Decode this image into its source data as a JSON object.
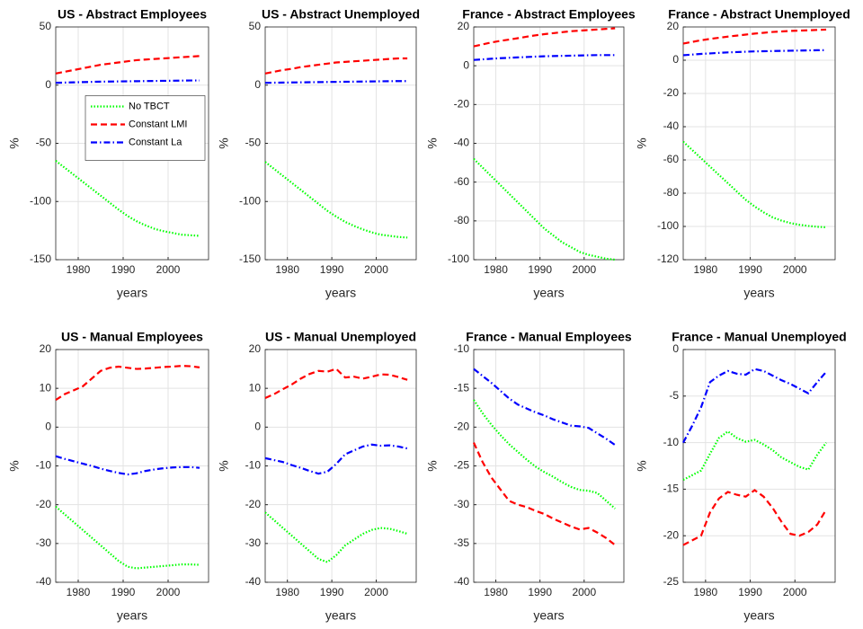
{
  "chart_data": [
    {
      "type": "line",
      "title": "US - Abstract Employees",
      "xlabel": "years",
      "ylabel": "%",
      "x": [
        1975,
        1977,
        1979,
        1981,
        1983,
        1985,
        1987,
        1989,
        1991,
        1993,
        1995,
        1997,
        1999,
        2001,
        2003,
        2005,
        2007
      ],
      "xlim": [
        1975,
        2009
      ],
      "xticks": [
        1980,
        1990,
        2000
      ],
      "ylim": [
        -150,
        50
      ],
      "yticks": [
        -150,
        -100,
        -50,
        0,
        50
      ],
      "grid": true,
      "legend": "east",
      "series": [
        {
          "name": "No TBCT",
          "color": "#00ff00",
          "linestyle": "dotted",
          "values": [
            -65,
            -71,
            -77,
            -83,
            -89,
            -95,
            -101,
            -107,
            -112.5,
            -117,
            -120.5,
            -123.5,
            -125.5,
            -127,
            -128.5,
            -129,
            -129.5
          ]
        },
        {
          "name": "Constant LMI",
          "color": "#ff0000",
          "linestyle": "dashed",
          "values": [
            10,
            11.5,
            13,
            14.5,
            16,
            17.5,
            18.5,
            19.5,
            20.5,
            21.5,
            22,
            22.5,
            23,
            23.5,
            24,
            24.5,
            25
          ]
        },
        {
          "name": "Constant La",
          "color": "#0000ff",
          "linestyle": "dashdot",
          "values": [
            2,
            2.2,
            2.4,
            2.6,
            2.8,
            3,
            3.1,
            3.2,
            3.3,
            3.4,
            3.5,
            3.6,
            3.7,
            3.8,
            3.9,
            4,
            4
          ]
        }
      ]
    },
    {
      "type": "line",
      "title": "US - Abstract Unemployed",
      "xlabel": "years",
      "ylabel": "%",
      "x": [
        1975,
        1977,
        1979,
        1981,
        1983,
        1985,
        1987,
        1989,
        1991,
        1993,
        1995,
        1997,
        1999,
        2001,
        2003,
        2005,
        2007
      ],
      "xlim": [
        1975,
        2009
      ],
      "xticks": [
        1980,
        1990,
        2000
      ],
      "ylim": [
        -150,
        50
      ],
      "yticks": [
        -150,
        -100,
        -50,
        0,
        50
      ],
      "grid": true,
      "series": [
        {
          "color": "#00ff00",
          "linestyle": "dotted",
          "values": [
            -66,
            -72,
            -78,
            -84,
            -90,
            -96,
            -102,
            -108,
            -113,
            -117.5,
            -121,
            -124,
            -126.5,
            -128.5,
            -129.5,
            -130.5,
            -131
          ]
        },
        {
          "color": "#ff0000",
          "linestyle": "dashed",
          "values": [
            10,
            11.5,
            13,
            14,
            15.5,
            16.5,
            17.5,
            18.5,
            19.5,
            20,
            20.5,
            21,
            21.5,
            22,
            22.5,
            23,
            23
          ]
        },
        {
          "color": "#0000ff",
          "linestyle": "dashdot",
          "values": [
            2,
            2.1,
            2.2,
            2.3,
            2.4,
            2.5,
            2.6,
            2.7,
            2.8,
            2.9,
            3,
            3.1,
            3.2,
            3.3,
            3.4,
            3.5,
            3.5
          ]
        }
      ]
    },
    {
      "type": "line",
      "title": "France - Abstract Employees",
      "xlabel": "years",
      "ylabel": "%",
      "x": [
        1975,
        1977,
        1979,
        1981,
        1983,
        1985,
        1987,
        1989,
        1991,
        1993,
        1995,
        1997,
        1999,
        2001,
        2003,
        2005,
        2007
      ],
      "xlim": [
        1975,
        2009
      ],
      "xticks": [
        1980,
        1990,
        2000
      ],
      "ylim": [
        -100,
        20
      ],
      "yticks": [
        -100,
        -80,
        -60,
        -40,
        -20,
        0,
        20
      ],
      "grid": true,
      "series": [
        {
          "color": "#00ff00",
          "linestyle": "dotted",
          "values": [
            -48,
            -52.5,
            -57,
            -61.5,
            -66,
            -70.5,
            -75,
            -79.5,
            -84,
            -87.5,
            -91,
            -93.5,
            -96,
            -97.5,
            -98.5,
            -99.5,
            -100
          ]
        },
        {
          "color": "#ff0000",
          "linestyle": "dashed",
          "values": [
            10,
            11,
            12,
            12.8,
            13.5,
            14.2,
            15,
            15.7,
            16.3,
            16.8,
            17.3,
            17.8,
            18.1,
            18.4,
            18.7,
            19,
            19.3
          ]
        },
        {
          "color": "#0000ff",
          "linestyle": "dashdot",
          "values": [
            3,
            3.3,
            3.6,
            3.9,
            4.1,
            4.3,
            4.5,
            4.7,
            4.9,
            5,
            5.1,
            5.2,
            5.3,
            5.4,
            5.5,
            5.5,
            5.5
          ]
        }
      ]
    },
    {
      "type": "line",
      "title": "France - Abstract Unemployed",
      "xlabel": "years",
      "ylabel": "%",
      "x": [
        1975,
        1977,
        1979,
        1981,
        1983,
        1985,
        1987,
        1989,
        1991,
        1993,
        1995,
        1997,
        1999,
        2001,
        2003,
        2005,
        2007
      ],
      "xlim": [
        1975,
        2009
      ],
      "xticks": [
        1980,
        1990,
        2000
      ],
      "ylim": [
        -120,
        20
      ],
      "yticks": [
        -120,
        -100,
        -80,
        -60,
        -40,
        -20,
        0,
        20
      ],
      "grid": true,
      "series": [
        {
          "color": "#00ff00",
          "linestyle": "dotted",
          "values": [
            -49,
            -54,
            -59,
            -64,
            -69,
            -74,
            -79,
            -84,
            -88,
            -91.5,
            -94.5,
            -96.5,
            -98,
            -99,
            -99.7,
            -100.2,
            -100.5
          ]
        },
        {
          "color": "#ff0000",
          "linestyle": "dashed",
          "values": [
            10,
            11,
            12,
            12.8,
            13.5,
            14.2,
            14.8,
            15.4,
            16,
            16.5,
            17,
            17.3,
            17.6,
            17.8,
            18,
            18.2,
            18.4
          ]
        },
        {
          "color": "#0000ff",
          "linestyle": "dashdot",
          "values": [
            3,
            3.4,
            3.8,
            4.1,
            4.4,
            4.7,
            4.9,
            5.1,
            5.3,
            5.4,
            5.5,
            5.6,
            5.7,
            5.8,
            5.9,
            6,
            6
          ]
        }
      ]
    },
    {
      "type": "line",
      "title": "US - Manual Employees",
      "xlabel": "years",
      "ylabel": "%",
      "x": [
        1975,
        1977,
        1979,
        1981,
        1983,
        1985,
        1987,
        1989,
        1991,
        1993,
        1995,
        1997,
        1999,
        2001,
        2003,
        2005,
        2007
      ],
      "xlim": [
        1975,
        2009
      ],
      "xticks": [
        1980,
        1990,
        2000
      ],
      "ylim": [
        -40,
        20
      ],
      "yticks": [
        -40,
        -30,
        -20,
        -10,
        0,
        10,
        20
      ],
      "grid": true,
      "series": [
        {
          "color": "#00ff00",
          "linestyle": "dotted",
          "values": [
            -20.5,
            -22.5,
            -24.5,
            -26.5,
            -28.5,
            -30.5,
            -32.5,
            -34.5,
            -36,
            -36.4,
            -36.2,
            -36,
            -35.8,
            -35.6,
            -35.4,
            -35.4,
            -35.5
          ]
        },
        {
          "color": "#ff0000",
          "linestyle": "dashed",
          "values": [
            7,
            8.5,
            9.5,
            10.5,
            12.5,
            14.5,
            15.3,
            15.6,
            15.3,
            15,
            15.1,
            15.3,
            15.5,
            15.6,
            15.8,
            15.7,
            15.4
          ]
        },
        {
          "color": "#0000ff",
          "linestyle": "dashdot",
          "values": [
            -7.5,
            -8.2,
            -8.8,
            -9.4,
            -10,
            -10.7,
            -11.3,
            -11.8,
            -12.2,
            -11.9,
            -11.3,
            -10.9,
            -10.6,
            -10.4,
            -10.3,
            -10.3,
            -10.5
          ]
        }
      ]
    },
    {
      "type": "line",
      "title": "US - Manual Unemployed",
      "xlabel": "years",
      "ylabel": "%",
      "x": [
        1975,
        1977,
        1979,
        1981,
        1983,
        1985,
        1987,
        1989,
        1991,
        1993,
        1995,
        1997,
        1999,
        2001,
        2003,
        2005,
        2007
      ],
      "xlim": [
        1975,
        2009
      ],
      "xticks": [
        1980,
        1990,
        2000
      ],
      "ylim": [
        -40,
        20
      ],
      "yticks": [
        -40,
        -30,
        -20,
        -10,
        0,
        10,
        20
      ],
      "grid": true,
      "series": [
        {
          "color": "#00ff00",
          "linestyle": "dotted",
          "values": [
            -22,
            -24,
            -26,
            -28,
            -30,
            -32,
            -34,
            -34.8,
            -33,
            -30.5,
            -29,
            -27.5,
            -26.5,
            -26,
            -26.2,
            -26.8,
            -27.5
          ]
        },
        {
          "color": "#ff0000",
          "linestyle": "dashed",
          "values": [
            7.5,
            8.5,
            9.8,
            11,
            12.5,
            13.7,
            14.5,
            14.3,
            15,
            12.8,
            13,
            12.5,
            13,
            13.6,
            13.5,
            12.9,
            12.2
          ]
        },
        {
          "color": "#0000ff",
          "linestyle": "dashdot",
          "values": [
            -8,
            -8.5,
            -9,
            -9.8,
            -10.5,
            -11.3,
            -12,
            -11.5,
            -9.5,
            -7,
            -6,
            -5,
            -4.5,
            -4.8,
            -4.7,
            -5,
            -5.5
          ]
        }
      ]
    },
    {
      "type": "line",
      "title": "France - Manual Employees",
      "xlabel": "years",
      "ylabel": "%",
      "x": [
        1975,
        1977,
        1979,
        1981,
        1983,
        1985,
        1987,
        1989,
        1991,
        1993,
        1995,
        1997,
        1999,
        2001,
        2003,
        2005,
        2007
      ],
      "xlim": [
        1975,
        2009
      ],
      "xticks": [
        1980,
        1990,
        2000
      ],
      "ylim": [
        -40,
        -10
      ],
      "yticks": [
        -40,
        -35,
        -30,
        -25,
        -20,
        -15,
        -10
      ],
      "grid": true,
      "series": [
        {
          "color": "#00ff00",
          "linestyle": "dotted",
          "values": [
            -16.5,
            -18.2,
            -19.7,
            -21,
            -22.2,
            -23.2,
            -24.2,
            -25.1,
            -25.8,
            -26.4,
            -27.1,
            -27.7,
            -28.1,
            -28.2,
            -28.5,
            -29.5,
            -30.5
          ]
        },
        {
          "color": "#ff0000",
          "linestyle": "dashed",
          "values": [
            -22,
            -24.5,
            -26.5,
            -28,
            -29.5,
            -30,
            -30.3,
            -30.8,
            -31.2,
            -31.8,
            -32.3,
            -32.8,
            -33.2,
            -33,
            -33.6,
            -34.3,
            -35.2
          ]
        },
        {
          "color": "#0000ff",
          "linestyle": "dashdot",
          "values": [
            -12.5,
            -13.4,
            -14.3,
            -15.3,
            -16.3,
            -17.1,
            -17.6,
            -18.1,
            -18.5,
            -19,
            -19.4,
            -19.8,
            -19.9,
            -20.1,
            -20.8,
            -21.5,
            -22.3
          ]
        }
      ]
    },
    {
      "type": "line",
      "title": "France - Manual Unemployed",
      "xlabel": "years",
      "ylabel": "%",
      "x": [
        1975,
        1977,
        1979,
        1981,
        1983,
        1985,
        1987,
        1989,
        1991,
        1993,
        1995,
        1997,
        1999,
        2001,
        2003,
        2005,
        2007
      ],
      "xlim": [
        1975,
        2009
      ],
      "xticks": [
        1980,
        1990,
        2000
      ],
      "ylim": [
        -25,
        0
      ],
      "yticks": [
        -25,
        -20,
        -15,
        -10,
        -5,
        0
      ],
      "grid": true,
      "series": [
        {
          "color": "#00ff00",
          "linestyle": "dotted",
          "values": [
            -14,
            -13.5,
            -13,
            -11.2,
            -9.5,
            -8.8,
            -9.5,
            -9.9,
            -9.7,
            -10.2,
            -10.8,
            -11.6,
            -12.1,
            -12.6,
            -12.9,
            -11.3,
            -10
          ]
        },
        {
          "color": "#ff0000",
          "linestyle": "dashed",
          "values": [
            -21,
            -20.5,
            -20,
            -17.5,
            -16,
            -15.3,
            -15.6,
            -15.8,
            -15.1,
            -15.8,
            -17,
            -18.5,
            -19.8,
            -20,
            -19.6,
            -18.8,
            -17.2
          ]
        },
        {
          "color": "#0000ff",
          "linestyle": "dashdot",
          "values": [
            -10,
            -8.2,
            -6.2,
            -3.5,
            -2.8,
            -2.3,
            -2.6,
            -2.7,
            -2.1,
            -2.3,
            -2.8,
            -3.3,
            -3.7,
            -4.2,
            -4.7,
            -3.5,
            -2.4
          ]
        }
      ]
    }
  ]
}
